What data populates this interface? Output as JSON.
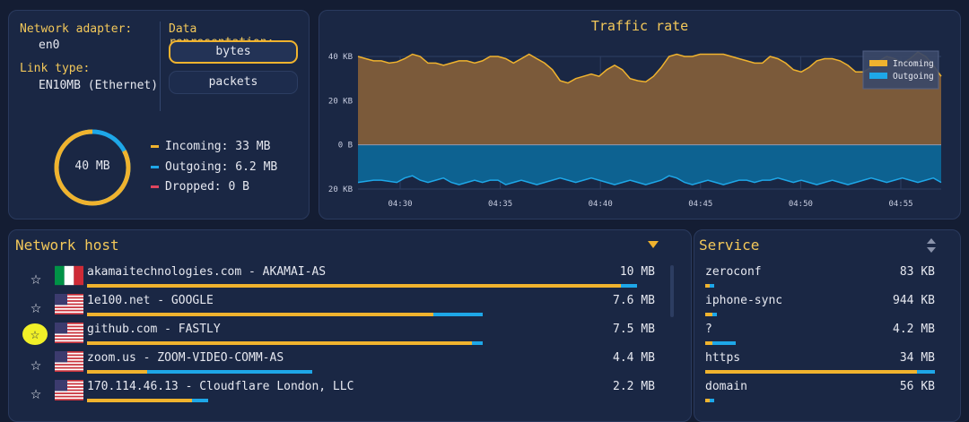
{
  "adapter": {
    "network_adapter_label": "Network adapter:",
    "network_adapter_value": "en0",
    "link_type_label": "Link type:",
    "link_type_value": "EN10MB (Ethernet)",
    "data_repr_label": "Data representation:",
    "bytes_label": "bytes",
    "packets_label": "packets",
    "selected": "bytes",
    "donut_total": "40 MB",
    "legend": [
      {
        "label": "Incoming: 33 MB",
        "color": "#f0b32e"
      },
      {
        "label": "Outgoing: 6.2 MB",
        "color": "#1ea7e8"
      },
      {
        "label": "Dropped: 0 B",
        "color": "#e0455e"
      }
    ]
  },
  "chart_data": {
    "type": "area",
    "title": "Traffic rate",
    "x_ticks": [
      "04:30",
      "04:35",
      "04:40",
      "04:45",
      "04:50",
      "04:55"
    ],
    "y_ticks": [
      "40 KB",
      "20 KB",
      "0 B",
      "20 KB"
    ],
    "ylim": [
      -20,
      40
    ],
    "y_unit": "KB",
    "legend_position": "top-right",
    "grid": true,
    "series": [
      {
        "name": "Incoming",
        "color": "#f0b32e",
        "values": [
          40,
          39,
          38,
          38,
          37,
          37.5,
          39,
          41,
          40,
          37,
          37,
          36,
          37,
          38,
          38,
          37,
          38,
          40,
          40,
          39,
          37,
          39,
          41,
          39,
          37,
          34,
          29,
          28,
          30,
          31,
          32,
          31,
          34,
          36,
          34,
          30,
          29,
          28.5,
          31,
          35,
          40,
          41,
          40,
          40,
          41,
          41,
          41,
          41,
          40,
          39,
          38,
          37,
          37,
          40,
          39,
          37,
          34,
          33,
          35,
          38,
          39,
          39,
          38,
          36,
          33,
          33,
          35,
          38,
          40,
          39,
          37,
          39,
          42,
          40,
          36,
          31
        ]
      },
      {
        "name": "Outgoing",
        "color": "#1ea7e8",
        "values": [
          -17,
          -16.5,
          -16,
          -16,
          -16.5,
          -17,
          -15,
          -14,
          -16,
          -17,
          -16,
          -15,
          -17,
          -18,
          -17,
          -16,
          -17,
          -16,
          -16,
          -18,
          -17,
          -16,
          -17,
          -18,
          -17,
          -16,
          -15,
          -16,
          -17,
          -16,
          -15,
          -16,
          -17,
          -18,
          -17,
          -16,
          -17,
          -18,
          -17,
          -16,
          -14,
          -15,
          -17,
          -18,
          -17,
          -16,
          -17,
          -18,
          -17,
          -16,
          -16,
          -17,
          -16,
          -16,
          -15,
          -16,
          -17,
          -16,
          -17,
          -18,
          -17,
          -16,
          -17,
          -18,
          -17,
          -16,
          -15,
          -16,
          -17,
          -16,
          -15,
          -16,
          -17,
          -16,
          -15,
          -17
        ]
      }
    ]
  },
  "hosts": {
    "title": "Network host",
    "items": [
      {
        "name": "akamaitechnologies.com - AKAMAI-AS",
        "size": "10 MB",
        "flag": "it",
        "starred": false,
        "in_pct": 0.97,
        "out_pct": 0.03
      },
      {
        "name": "1e100.net - GOOGLE",
        "size": "7.6 MB",
        "flag": "us",
        "starred": false,
        "in_pct": 0.63,
        "out_pct": 0.09
      },
      {
        "name": "github.com - FASTLY",
        "size": "7.5 MB",
        "flag": "us",
        "starred": true,
        "in_pct": 0.7,
        "out_pct": 0.02
      },
      {
        "name": "zoom.us - ZOOM-VIDEO-COMM-AS",
        "size": "4.4 MB",
        "flag": "us",
        "starred": false,
        "in_pct": 0.11,
        "out_pct": 0.3
      },
      {
        "name": "170.114.46.13 - Cloudflare London, LLC",
        "size": "2.2 MB",
        "flag": "us",
        "starred": false,
        "in_pct": 0.19,
        "out_pct": 0.03
      }
    ]
  },
  "services": {
    "title": "Service",
    "items": [
      {
        "name": "zeroconf",
        "size": "83 KB",
        "in_pct": 0.02,
        "out_pct": 0.02
      },
      {
        "name": "iphone-sync",
        "size": "944 KB",
        "in_pct": 0.03,
        "out_pct": 0.02
      },
      {
        "name": "?",
        "size": "4.2 MB",
        "in_pct": 0.03,
        "out_pct": 0.1
      },
      {
        "name": "https",
        "size": "34 MB",
        "in_pct": 0.92,
        "out_pct": 0.08
      },
      {
        "name": "domain",
        "size": "56 KB",
        "in_pct": 0.02,
        "out_pct": 0.02
      }
    ]
  }
}
